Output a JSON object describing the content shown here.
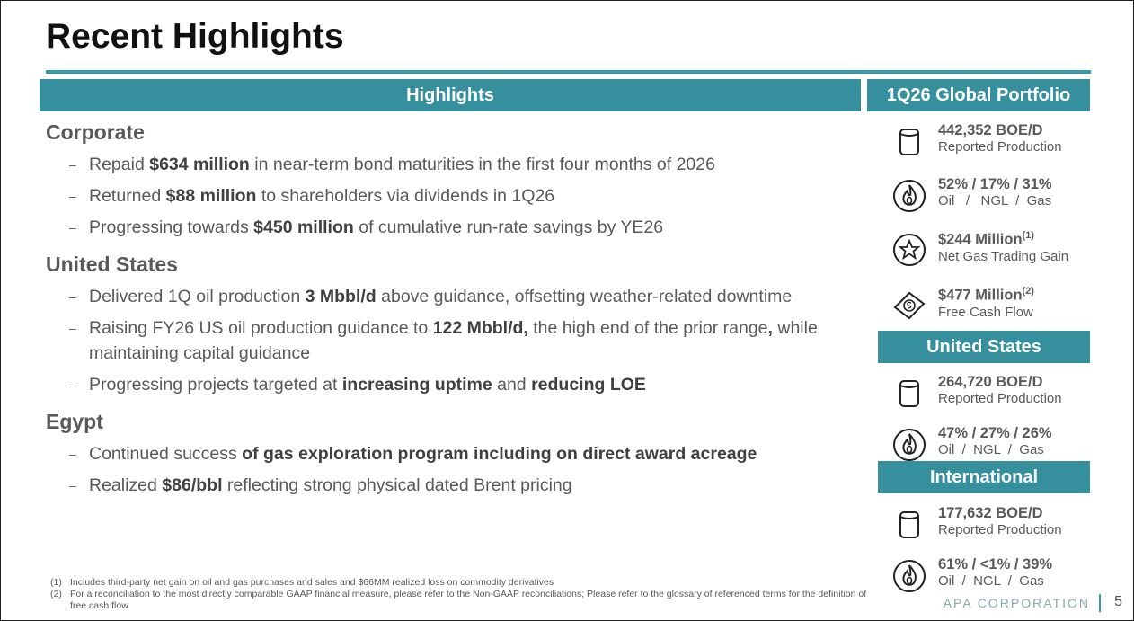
{
  "title": "Recent Highlights",
  "highlights": {
    "header": "Highlights",
    "sections": [
      {
        "heading": "Corporate",
        "bullets": [
          [
            "Repaid ",
            "$634 million",
            " in near-term bond maturities in the first four months of 2026"
          ],
          [
            "Returned ",
            "$88 million",
            " to shareholders via dividends in 1Q26"
          ],
          [
            "Progressing towards ",
            "$450 million",
            " of cumulative run-rate savings by YE26"
          ]
        ]
      },
      {
        "heading": "United States",
        "bullets": [
          [
            "Delivered 1Q oil production ",
            "3 Mbbl/d",
            " above guidance, offsetting weather-related downtime"
          ],
          [
            "Raising FY26 US oil production guidance to ",
            "122 Mbbl/d,",
            " the high end of the prior range",
            ",",
            " while maintaining capital guidance"
          ],
          [
            "Progressing projects targeted at ",
            "increasing uptime",
            " and ",
            "reducing LOE"
          ]
        ]
      },
      {
        "heading": "Egypt",
        "bullets": [
          [
            "Continued success",
            " of gas exploration program including on direct award acreage"
          ],
          [
            "Realized ",
            "$86/bbl",
            " reflecting strong physical dated Brent pricing"
          ]
        ]
      }
    ]
  },
  "portfolio": {
    "global": {
      "header": "1Q26 Global Portfolio",
      "items": [
        {
          "value": "442,352 BOE/D",
          "label": "Reported Production"
        },
        {
          "value": "52% / 17% / 31%",
          "label": "Oil   /   NGL  /  Gas"
        },
        {
          "value": "$244 Million",
          "sup": "(1)",
          "label": "Net Gas Trading Gain"
        },
        {
          "value": "$477 Million",
          "sup": "(2)",
          "label": "Free Cash Flow"
        }
      ]
    },
    "united_states": {
      "header": "United States",
      "items": [
        {
          "value": "264,720 BOE/D",
          "label": "Reported Production"
        },
        {
          "value": "47% / 27% / 26%",
          "label": "Oil  /  NGL  /  Gas"
        }
      ]
    },
    "international": {
      "header": "International",
      "items": [
        {
          "value": "177,632 BOE/D",
          "label": "Reported Production"
        },
        {
          "value": "61% / <1% / 39%",
          "label": "Oil  /  NGL  /  Gas"
        }
      ]
    }
  },
  "footnotes": [
    {
      "marker": "(1)",
      "text": "Includes third-party net gain on oil and gas purchases and sales and $66MM realized loss on commodity derivatives"
    },
    {
      "marker": "(2)",
      "text": "For a reconciliation to the most directly comparable GAAP financial measure, please refer to the Non-GAAP reconciliations; Please refer to the glossary of referenced terms for the definition of free cash flow"
    }
  ],
  "footer": {
    "company": "APA CORPORATION",
    "page": "5"
  }
}
